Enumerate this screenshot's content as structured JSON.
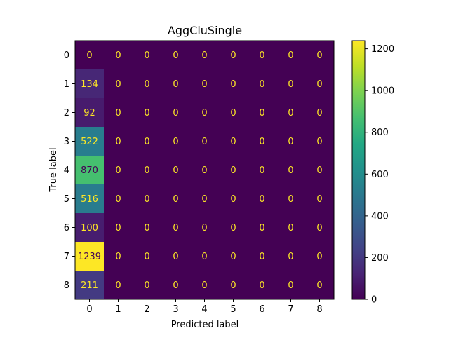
{
  "chart_data": {
    "type": "heatmap",
    "title": "AggCluSingle",
    "xlabel": "Predicted label",
    "ylabel": "True label",
    "x_categories": [
      "0",
      "1",
      "2",
      "3",
      "4",
      "5",
      "6",
      "7",
      "8"
    ],
    "y_categories": [
      "0",
      "1",
      "2",
      "3",
      "4",
      "5",
      "6",
      "7",
      "8"
    ],
    "values": [
      [
        0,
        0,
        0,
        0,
        0,
        0,
        0,
        0,
        0
      ],
      [
        134,
        0,
        0,
        0,
        0,
        0,
        0,
        0,
        0
      ],
      [
        92,
        0,
        0,
        0,
        0,
        0,
        0,
        0,
        0
      ],
      [
        522,
        0,
        0,
        0,
        0,
        0,
        0,
        0,
        0
      ],
      [
        870,
        0,
        0,
        0,
        0,
        0,
        0,
        0,
        0
      ],
      [
        516,
        0,
        0,
        0,
        0,
        0,
        0,
        0,
        0
      ],
      [
        100,
        0,
        0,
        0,
        0,
        0,
        0,
        0,
        0
      ],
      [
        1239,
        0,
        0,
        0,
        0,
        0,
        0,
        0,
        0
      ],
      [
        211,
        0,
        0,
        0,
        0,
        0,
        0,
        0,
        0
      ]
    ],
    "colormap": "viridis",
    "colorbar": {
      "range": [
        0,
        1239
      ],
      "ticks": [
        0,
        200,
        400,
        600,
        800,
        1000,
        1200
      ]
    },
    "text_colors": {
      "on_dark": "#fde725",
      "on_light": "#440154"
    }
  }
}
